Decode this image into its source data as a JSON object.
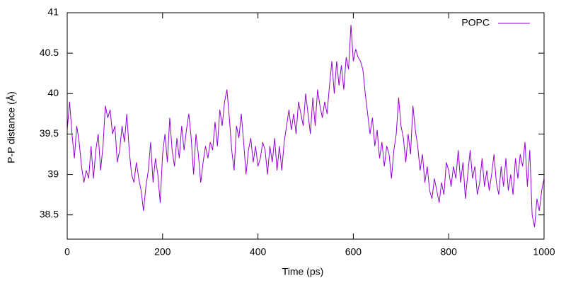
{
  "chart_data": {
    "type": "line",
    "x_label": "Time (ps)",
    "y_label": "P-P distance (Å)",
    "x": [
      0,
      5,
      10,
      15,
      20,
      25,
      30,
      35,
      40,
      45,
      50,
      55,
      60,
      65,
      70,
      75,
      80,
      85,
      90,
      95,
      100,
      105,
      110,
      115,
      120,
      125,
      130,
      135,
      140,
      145,
      150,
      155,
      160,
      165,
      170,
      175,
      180,
      185,
      190,
      195,
      200,
      205,
      210,
      215,
      220,
      225,
      230,
      235,
      240,
      245,
      250,
      255,
      260,
      265,
      270,
      275,
      280,
      285,
      290,
      295,
      300,
      305,
      310,
      315,
      320,
      325,
      330,
      335,
      340,
      345,
      350,
      355,
      360,
      365,
      370,
      375,
      380,
      385,
      390,
      395,
      400,
      405,
      410,
      415,
      420,
      425,
      430,
      435,
      440,
      445,
      450,
      455,
      460,
      465,
      470,
      475,
      480,
      485,
      490,
      495,
      500,
      505,
      510,
      515,
      520,
      525,
      530,
      535,
      540,
      545,
      550,
      555,
      560,
      565,
      570,
      575,
      580,
      585,
      590,
      595,
      600,
      605,
      610,
      615,
      620,
      625,
      630,
      635,
      640,
      645,
      650,
      655,
      660,
      665,
      670,
      675,
      680,
      685,
      690,
      695,
      700,
      705,
      710,
      715,
      720,
      725,
      730,
      735,
      740,
      745,
      750,
      755,
      760,
      765,
      770,
      775,
      780,
      785,
      790,
      795,
      800,
      805,
      810,
      815,
      820,
      825,
      830,
      835,
      840,
      845,
      850,
      855,
      860,
      865,
      870,
      875,
      880,
      885,
      890,
      895,
      900,
      905,
      910,
      915,
      920,
      925,
      930,
      935,
      940,
      945,
      950,
      955,
      960,
      965,
      970,
      975,
      980,
      985,
      990,
      995,
      1000
    ],
    "series": [
      {
        "name": "POPC",
        "color": "#9400d3",
        "values": [
          39.55,
          39.9,
          39.5,
          39.2,
          39.6,
          39.4,
          39.1,
          38.9,
          39.05,
          38.95,
          39.35,
          38.95,
          39.3,
          39.5,
          39.05,
          39.35,
          39.85,
          39.7,
          39.8,
          39.5,
          39.6,
          39.15,
          39.3,
          39.6,
          39.4,
          39.75,
          39.3,
          39.0,
          38.9,
          39.15,
          38.95,
          38.8,
          38.55,
          38.85,
          39.05,
          39.4,
          38.9,
          39.2,
          39.0,
          38.65,
          39.25,
          39.5,
          39.15,
          39.7,
          39.3,
          39.1,
          39.45,
          39.2,
          39.6,
          39.3,
          39.55,
          39.75,
          39.45,
          39.0,
          39.5,
          39.25,
          38.9,
          39.15,
          39.35,
          39.2,
          39.4,
          39.3,
          39.65,
          39.35,
          39.8,
          39.6,
          39.9,
          40.05,
          39.7,
          39.3,
          39.05,
          39.6,
          39.45,
          39.75,
          39.4,
          39.0,
          39.3,
          39.45,
          39.15,
          39.35,
          39.1,
          39.2,
          39.4,
          39.3,
          39.0,
          39.35,
          39.15,
          39.45,
          39.05,
          39.35,
          39.05,
          39.4,
          39.6,
          39.8,
          39.55,
          39.75,
          39.5,
          39.9,
          39.75,
          39.6,
          40.0,
          39.75,
          39.5,
          39.95,
          39.6,
          40.05,
          39.85,
          39.7,
          39.9,
          39.75,
          40.1,
          40.4,
          40.0,
          40.4,
          40.1,
          40.35,
          40.05,
          40.45,
          40.3,
          40.85,
          40.4,
          40.55,
          40.45,
          40.4,
          40.3,
          40.0,
          39.75,
          39.5,
          39.7,
          39.35,
          39.55,
          39.2,
          39.4,
          39.1,
          39.35,
          39.25,
          38.95,
          39.3,
          39.5,
          39.95,
          39.6,
          39.45,
          39.15,
          39.5,
          39.25,
          39.85,
          39.55,
          39.35,
          39.05,
          39.25,
          38.9,
          39.1,
          38.8,
          38.7,
          38.95,
          38.8,
          38.65,
          38.9,
          38.75,
          39.15,
          39.05,
          38.85,
          39.1,
          38.95,
          39.3,
          38.9,
          39.15,
          38.7,
          39.0,
          39.3,
          38.95,
          39.1,
          38.75,
          38.9,
          39.2,
          38.85,
          39.05,
          38.8,
          39.0,
          39.25,
          38.9,
          38.75,
          39.1,
          38.85,
          39.2,
          38.8,
          39.0,
          38.75,
          39.2,
          38.95,
          39.25,
          39.1,
          39.4,
          38.85,
          39.3,
          38.5,
          38.35,
          38.7,
          38.55,
          38.8,
          38.95
        ]
      }
    ],
    "xlim": [
      0,
      1000
    ],
    "xticks": [
      0,
      200,
      400,
      600,
      800,
      1000
    ],
    "ylim": [
      38.2,
      41
    ],
    "yticks": [
      38.5,
      39,
      39.5,
      40,
      40.5,
      41
    ],
    "grid": false,
    "legend": "top-right"
  }
}
